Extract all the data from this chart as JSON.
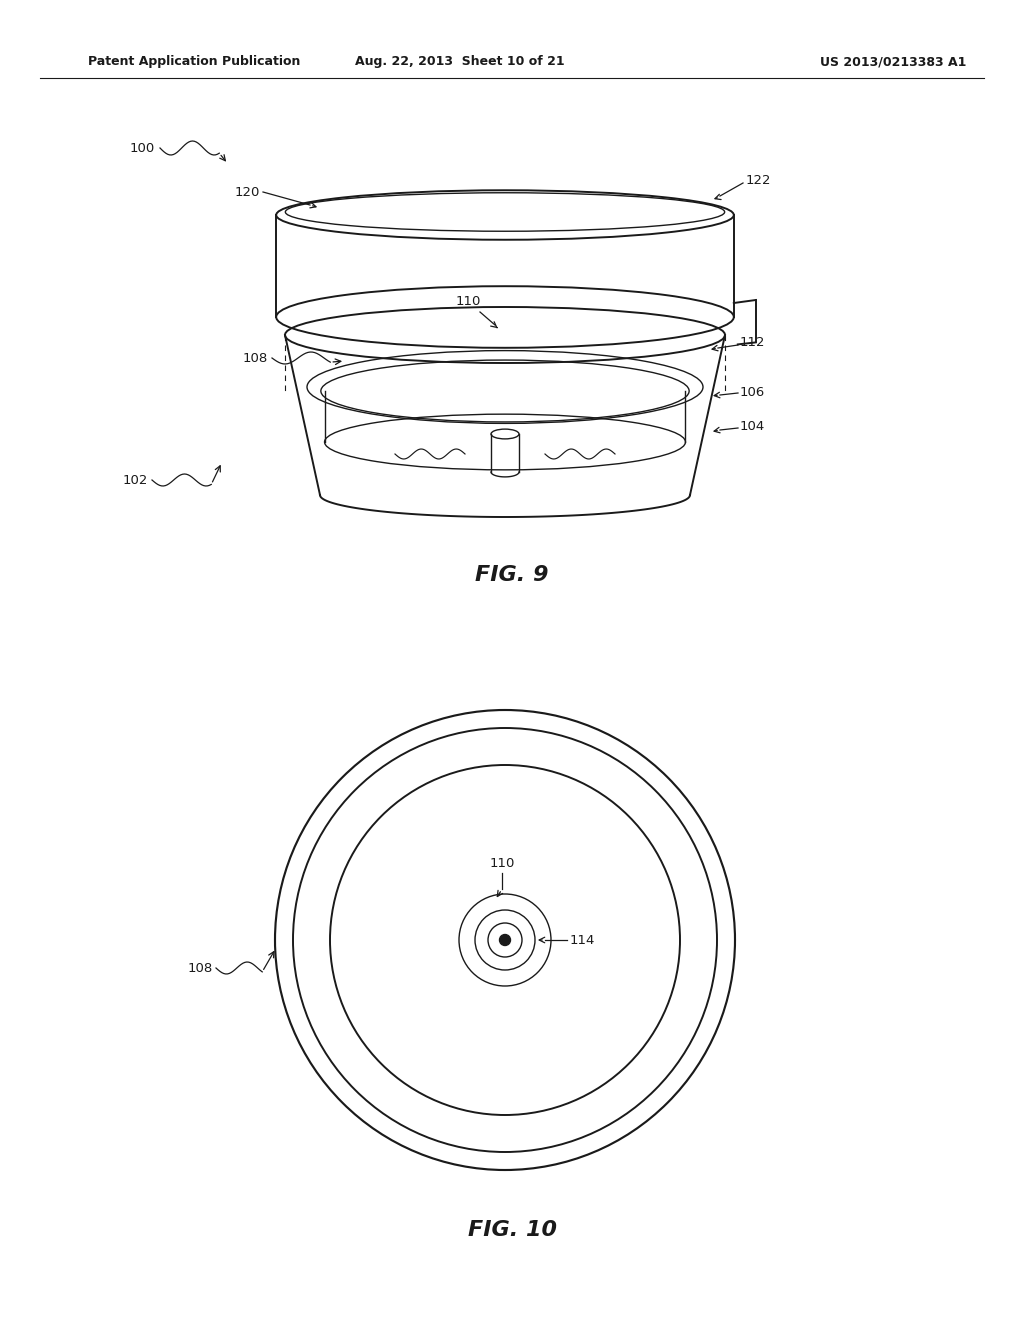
{
  "header_left": "Patent Application Publication",
  "header_center": "Aug. 22, 2013  Sheet 10 of 21",
  "header_right": "US 2013/0213383 A1",
  "fig9_label": "FIG. 9",
  "fig10_label": "FIG. 10",
  "bg_color": "#ffffff",
  "line_color": "#1a1a1a"
}
